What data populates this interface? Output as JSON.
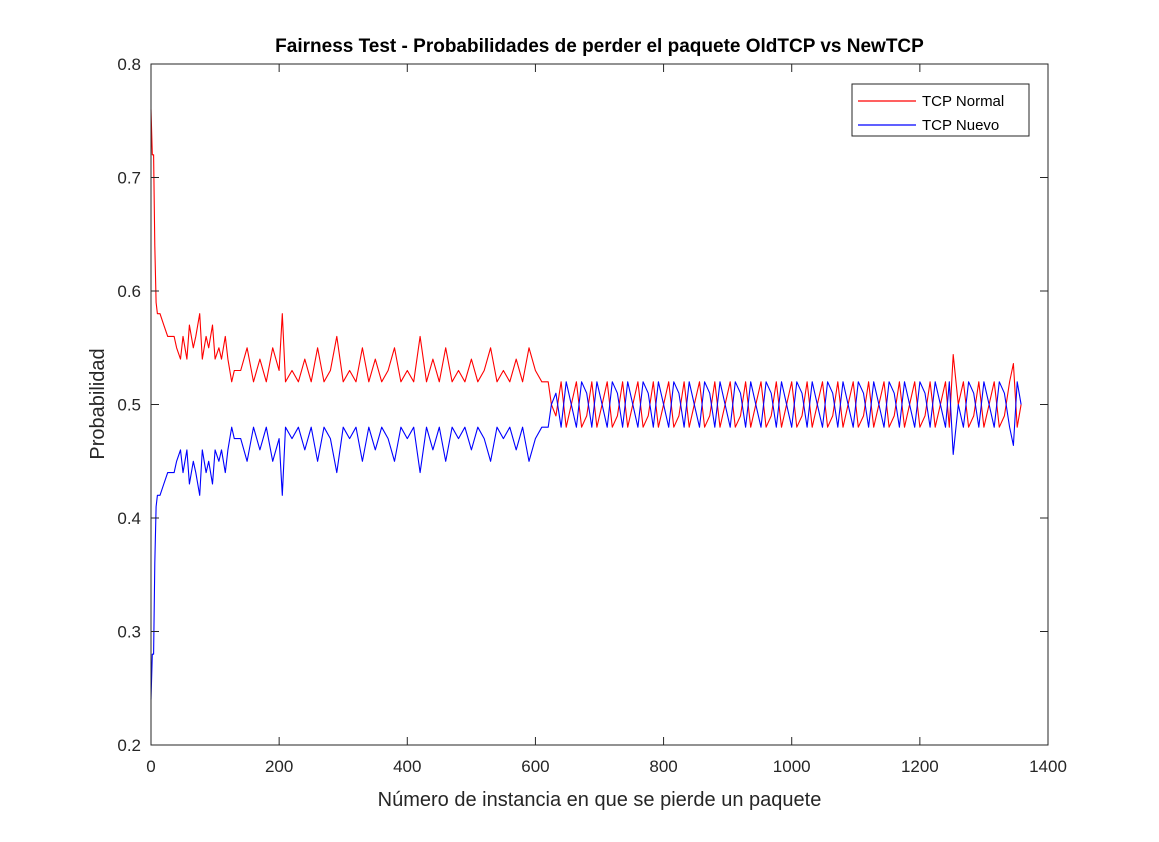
{
  "chart_data": {
    "type": "line",
    "title": "Fairness Test - Probabilidades de perder el paquete OldTCP vs NewTCP",
    "xlabel": "Número de instancia en que se pierde un paquete",
    "ylabel": "Probabilidad",
    "xlim": [
      0,
      1400
    ],
    "ylim": [
      0.2,
      0.8
    ],
    "xticks": [
      0,
      200,
      400,
      600,
      800,
      1000,
      1200,
      1400
    ],
    "xtick_labels": [
      "0",
      "200",
      "400",
      "600",
      "800",
      "1000",
      "1200",
      "1400"
    ],
    "yticks": [
      0.2,
      0.3,
      0.4,
      0.5,
      0.6,
      0.7,
      0.8
    ],
    "ytick_labels": [
      "0.2",
      "0.3",
      "0.4",
      "0.5",
      "0.6",
      "0.7",
      "0.8"
    ],
    "grid": false,
    "legend_position": "top-right",
    "series": [
      {
        "name": "TCP Normal",
        "color": "#ff0000",
        "x": [
          0,
          2,
          4,
          6,
          8,
          10,
          14,
          20,
          26,
          30,
          36,
          40,
          46,
          50,
          56,
          60,
          66,
          70,
          76,
          80,
          86,
          90,
          96,
          100,
          106,
          110,
          116,
          120,
          126,
          130,
          140,
          150,
          160,
          170,
          180,
          190,
          200,
          205,
          210,
          220,
          230,
          240,
          250,
          260,
          270,
          280,
          290,
          300,
          310,
          320,
          330,
          340,
          350,
          360,
          370,
          380,
          390,
          400,
          410,
          420,
          430,
          440,
          450,
          460,
          470,
          480,
          490,
          500,
          510,
          520,
          530,
          540,
          550,
          560,
          570,
          580,
          590,
          600,
          610,
          620,
          625,
          632,
          640,
          648,
          656,
          664,
          672,
          680,
          688,
          696,
          704,
          712,
          720,
          728,
          736,
          744,
          752,
          760,
          768,
          776,
          784,
          792,
          800,
          808,
          816,
          824,
          832,
          840,
          848,
          856,
          864,
          872,
          880,
          888,
          896,
          904,
          912,
          920,
          928,
          936,
          944,
          952,
          960,
          968,
          976,
          984,
          992,
          1000,
          1008,
          1016,
          1024,
          1032,
          1040,
          1048,
          1056,
          1064,
          1072,
          1080,
          1088,
          1096,
          1104,
          1112,
          1120,
          1128,
          1136,
          1144,
          1152,
          1160,
          1168,
          1176,
          1184,
          1192,
          1200,
          1208,
          1216,
          1224,
          1232,
          1240,
          1246,
          1252,
          1260,
          1268,
          1276,
          1284,
          1292,
          1300,
          1308,
          1316,
          1324,
          1332,
          1340,
          1346,
          1352,
          1358
        ],
        "y": [
          0.76,
          0.72,
          0.72,
          0.64,
          0.59,
          0.58,
          0.58,
          0.57,
          0.56,
          0.56,
          0.56,
          0.55,
          0.54,
          0.56,
          0.54,
          0.57,
          0.55,
          0.56,
          0.58,
          0.54,
          0.56,
          0.55,
          0.57,
          0.54,
          0.55,
          0.54,
          0.56,
          0.54,
          0.52,
          0.53,
          0.53,
          0.55,
          0.52,
          0.54,
          0.52,
          0.55,
          0.53,
          0.58,
          0.52,
          0.53,
          0.52,
          0.54,
          0.52,
          0.55,
          0.52,
          0.53,
          0.56,
          0.52,
          0.53,
          0.52,
          0.55,
          0.52,
          0.54,
          0.52,
          0.53,
          0.55,
          0.52,
          0.53,
          0.52,
          0.56,
          0.52,
          0.54,
          0.52,
          0.55,
          0.52,
          0.53,
          0.52,
          0.54,
          0.52,
          0.53,
          0.55,
          0.52,
          0.53,
          0.52,
          0.54,
          0.52,
          0.55,
          0.53,
          0.52,
          0.52,
          0.5,
          0.49,
          0.52,
          0.48,
          0.5,
          0.52,
          0.48,
          0.49,
          0.52,
          0.48,
          0.5,
          0.52,
          0.48,
          0.49,
          0.52,
          0.48,
          0.5,
          0.52,
          0.48,
          0.49,
          0.52,
          0.48,
          0.5,
          0.52,
          0.48,
          0.49,
          0.52,
          0.48,
          0.5,
          0.52,
          0.48,
          0.49,
          0.52,
          0.48,
          0.5,
          0.52,
          0.48,
          0.49,
          0.52,
          0.48,
          0.5,
          0.52,
          0.48,
          0.49,
          0.52,
          0.48,
          0.5,
          0.52,
          0.48,
          0.49,
          0.52,
          0.48,
          0.5,
          0.52,
          0.48,
          0.49,
          0.52,
          0.48,
          0.5,
          0.52,
          0.48,
          0.49,
          0.52,
          0.48,
          0.5,
          0.52,
          0.48,
          0.49,
          0.52,
          0.48,
          0.5,
          0.52,
          0.48,
          0.49,
          0.52,
          0.48,
          0.5,
          0.52,
          0.48,
          0.544,
          0.5,
          0.52,
          0.48,
          0.49,
          0.52,
          0.48,
          0.5,
          0.52,
          0.48,
          0.49,
          0.52,
          0.536,
          0.48,
          0.5
        ]
      },
      {
        "name": "TCP Nuevo",
        "color": "#0000ff",
        "x": [
          0,
          2,
          4,
          6,
          8,
          10,
          14,
          20,
          26,
          30,
          36,
          40,
          46,
          50,
          56,
          60,
          66,
          70,
          76,
          80,
          86,
          90,
          96,
          100,
          106,
          110,
          116,
          120,
          126,
          130,
          140,
          150,
          160,
          170,
          180,
          190,
          200,
          205,
          210,
          220,
          230,
          240,
          250,
          260,
          270,
          280,
          290,
          300,
          310,
          320,
          330,
          340,
          350,
          360,
          370,
          380,
          390,
          400,
          410,
          420,
          430,
          440,
          450,
          460,
          470,
          480,
          490,
          500,
          510,
          520,
          530,
          540,
          550,
          560,
          570,
          580,
          590,
          600,
          610,
          620,
          625,
          632,
          640,
          648,
          656,
          664,
          672,
          680,
          688,
          696,
          704,
          712,
          720,
          728,
          736,
          744,
          752,
          760,
          768,
          776,
          784,
          792,
          800,
          808,
          816,
          824,
          832,
          840,
          848,
          856,
          864,
          872,
          880,
          888,
          896,
          904,
          912,
          920,
          928,
          936,
          944,
          952,
          960,
          968,
          976,
          984,
          992,
          1000,
          1008,
          1016,
          1024,
          1032,
          1040,
          1048,
          1056,
          1064,
          1072,
          1080,
          1088,
          1096,
          1104,
          1112,
          1120,
          1128,
          1136,
          1144,
          1152,
          1160,
          1168,
          1176,
          1184,
          1192,
          1200,
          1208,
          1216,
          1224,
          1232,
          1240,
          1246,
          1252,
          1260,
          1268,
          1276,
          1284,
          1292,
          1300,
          1308,
          1316,
          1324,
          1332,
          1340,
          1346,
          1352,
          1358
        ],
        "y": [
          0.24,
          0.28,
          0.28,
          0.36,
          0.41,
          0.42,
          0.42,
          0.43,
          0.44,
          0.44,
          0.44,
          0.45,
          0.46,
          0.44,
          0.46,
          0.43,
          0.45,
          0.44,
          0.42,
          0.46,
          0.44,
          0.45,
          0.43,
          0.46,
          0.45,
          0.46,
          0.44,
          0.46,
          0.48,
          0.47,
          0.47,
          0.45,
          0.48,
          0.46,
          0.48,
          0.45,
          0.47,
          0.42,
          0.48,
          0.47,
          0.48,
          0.46,
          0.48,
          0.45,
          0.48,
          0.47,
          0.44,
          0.48,
          0.47,
          0.48,
          0.45,
          0.48,
          0.46,
          0.48,
          0.47,
          0.45,
          0.48,
          0.47,
          0.48,
          0.44,
          0.48,
          0.46,
          0.48,
          0.45,
          0.48,
          0.47,
          0.48,
          0.46,
          0.48,
          0.47,
          0.45,
          0.48,
          0.47,
          0.48,
          0.46,
          0.48,
          0.45,
          0.47,
          0.48,
          0.48,
          0.5,
          0.51,
          0.48,
          0.52,
          0.5,
          0.48,
          0.52,
          0.51,
          0.48,
          0.52,
          0.5,
          0.48,
          0.52,
          0.51,
          0.48,
          0.52,
          0.5,
          0.48,
          0.52,
          0.51,
          0.48,
          0.52,
          0.5,
          0.48,
          0.52,
          0.51,
          0.48,
          0.52,
          0.5,
          0.48,
          0.52,
          0.51,
          0.48,
          0.52,
          0.5,
          0.48,
          0.52,
          0.51,
          0.48,
          0.52,
          0.5,
          0.48,
          0.52,
          0.51,
          0.48,
          0.52,
          0.5,
          0.48,
          0.52,
          0.51,
          0.48,
          0.52,
          0.5,
          0.48,
          0.52,
          0.51,
          0.48,
          0.52,
          0.5,
          0.48,
          0.52,
          0.51,
          0.48,
          0.52,
          0.5,
          0.48,
          0.52,
          0.51,
          0.48,
          0.52,
          0.5,
          0.48,
          0.52,
          0.51,
          0.48,
          0.52,
          0.5,
          0.48,
          0.52,
          0.456,
          0.5,
          0.48,
          0.52,
          0.51,
          0.48,
          0.52,
          0.5,
          0.48,
          0.52,
          0.51,
          0.48,
          0.464,
          0.52,
          0.5
        ]
      }
    ]
  }
}
